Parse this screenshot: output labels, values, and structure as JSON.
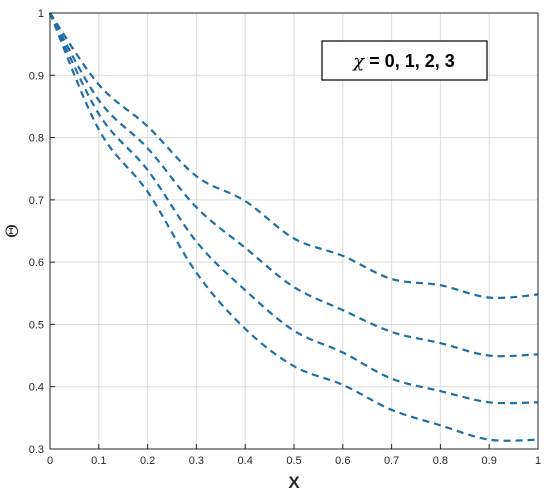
{
  "chart_data": {
    "type": "line",
    "xlabel": "X",
    "ylabel": "Θ",
    "xlim": [
      0,
      1
    ],
    "ylim": [
      0.3,
      1
    ],
    "x_ticks": [
      "0",
      "0.1",
      "0.2",
      "0.3",
      "0.4",
      "0.5",
      "0.6",
      "0.7",
      "0.8",
      "0.9",
      "1"
    ],
    "y_ticks": [
      "0.3",
      "0.4",
      "0.5",
      "0.6",
      "0.7",
      "0.8",
      "0.9",
      "1"
    ],
    "grid": true,
    "line_style": "dashed",
    "line_color": "#1f6fa5",
    "annotation": {
      "symbol": "χ",
      "text": " = 0, 1, 2, 3"
    },
    "x": [
      0,
      0.1,
      0.2,
      0.3,
      0.4,
      0.5,
      0.6,
      0.7,
      0.8,
      0.9,
      1.0
    ],
    "series": [
      {
        "values": [
          1.0,
          0.885,
          0.818,
          0.738,
          0.698,
          0.638,
          0.61,
          0.573,
          0.563,
          0.543,
          0.548
        ]
      },
      {
        "values": [
          1.0,
          0.86,
          0.783,
          0.688,
          0.623,
          0.56,
          0.523,
          0.488,
          0.47,
          0.45,
          0.452
        ]
      },
      {
        "values": [
          1.0,
          0.838,
          0.748,
          0.633,
          0.555,
          0.49,
          0.455,
          0.413,
          0.393,
          0.375,
          0.375
        ]
      },
      {
        "values": [
          1.0,
          0.813,
          0.713,
          0.583,
          0.493,
          0.433,
          0.403,
          0.363,
          0.338,
          0.315,
          0.315
        ]
      }
    ]
  }
}
